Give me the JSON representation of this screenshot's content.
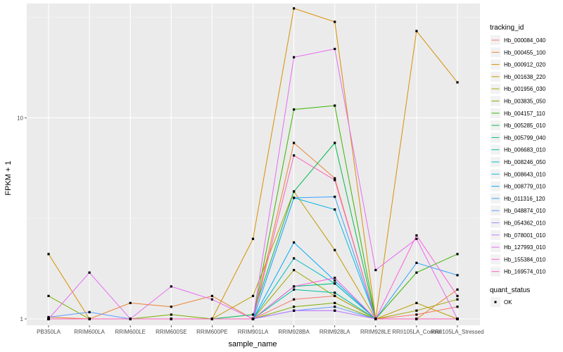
{
  "chart_data": {
    "type": "line",
    "title": "",
    "xlabel": "sample_name",
    "ylabel": "FPKM + 1",
    "y_scale": "log10",
    "ylim": [
      0.93,
      37
    ],
    "y_ticks": [
      1,
      10
    ],
    "y_tick_labels": [
      "1",
      "10"
    ],
    "categories": [
      "PB350LA",
      "RRIM600LA",
      "RRIM600LE",
      "RRIM600SE",
      "RRIM600PE",
      "RRIM901LA",
      "RRIM928BA",
      "RRIM928LA",
      "RRIM928LE",
      "RRII105LA_Control",
      "RRII105LA_Stressed"
    ],
    "category_labels": [
      "PB350LA",
      "RRIM600LA",
      "RRIM600LE",
      "RRIM600SE",
      "RRIM600PE",
      "RRIM901LA",
      "RRIM928BA",
      "RRIM928LA",
      "RRIM928LE",
      "RRII105LA_Control",
      "RRII105LA_Stressed"
    ],
    "legend_title": "tracking_id",
    "legend2_title": "quant_status",
    "legend2_label": "OK",
    "series": [
      {
        "name": "Hb_000084_040",
        "color": "#F8766D",
        "values": [
          1.0,
          1.0,
          1.0,
          1.0,
          1.0,
          1.0,
          1.25,
          1.3,
          1.0,
          1.05,
          1.15
        ]
      },
      {
        "name": "Hb_000455_100",
        "color": "#EA8331",
        "values": [
          1.02,
          1.0,
          1.2,
          1.15,
          1.3,
          1.0,
          7.5,
          5.0,
          1.0,
          1.0,
          1.4
        ]
      },
      {
        "name": "Hb_000912_020",
        "color": "#D89000",
        "values": [
          2.1,
          1.0,
          1.0,
          1.0,
          1.0,
          2.5,
          35.0,
          30.0,
          1.0,
          27.0,
          15.0
        ]
      },
      {
        "name": "Hb_001638_220",
        "color": "#C09B00",
        "values": [
          1.0,
          1.0,
          1.0,
          1.0,
          1.0,
          1.3,
          4.3,
          2.2,
          1.0,
          1.2,
          1.0
        ]
      },
      {
        "name": "Hb_001956_030",
        "color": "#A3A500",
        "values": [
          1.0,
          1.0,
          1.0,
          1.0,
          1.0,
          1.0,
          1.75,
          1.3,
          1.0,
          1.1,
          1.25
        ]
      },
      {
        "name": "Hb_003835_050",
        "color": "#7CAE00",
        "values": [
          1.3,
          1.0,
          1.0,
          1.05,
          1.0,
          1.0,
          1.15,
          1.2,
          1.0,
          1.0,
          1.0
        ]
      },
      {
        "name": "Hb_004157_110",
        "color": "#39B600",
        "values": [
          1.0,
          1.0,
          1.0,
          1.0,
          1.0,
          1.0,
          11.0,
          11.5,
          1.0,
          1.7,
          2.1
        ]
      },
      {
        "name": "Hb_005285_010",
        "color": "#00BB4E",
        "values": [
          1.0,
          1.0,
          1.0,
          1.0,
          1.0,
          1.05,
          4.3,
          7.5,
          1.0,
          1.0,
          1.0
        ]
      },
      {
        "name": "Hb_005799_040",
        "color": "#00BF7D",
        "values": [
          1.0,
          1.0,
          1.0,
          1.0,
          1.0,
          1.0,
          1.45,
          1.5,
          1.0,
          1.0,
          1.0
        ]
      },
      {
        "name": "Hb_006683_010",
        "color": "#00C1A3",
        "values": [
          1.0,
          1.0,
          1.0,
          1.0,
          1.0,
          1.0,
          1.4,
          1.35,
          1.0,
          1.0,
          1.0
        ]
      },
      {
        "name": "Hb_008246_050",
        "color": "#00BFC4",
        "values": [
          1.0,
          1.0,
          1.0,
          1.0,
          1.0,
          1.0,
          2.0,
          1.5,
          1.0,
          1.0,
          1.0
        ]
      },
      {
        "name": "Hb_008643_010",
        "color": "#00B8E5",
        "values": [
          1.0,
          1.0,
          1.0,
          1.0,
          1.0,
          1.0,
          4.0,
          3.5,
          1.0,
          1.0,
          1.0
        ]
      },
      {
        "name": "Hb_008779_010",
        "color": "#00A9FF",
        "values": [
          1.0,
          1.0,
          1.0,
          1.0,
          1.0,
          1.0,
          2.4,
          1.55,
          1.0,
          1.0,
          1.0
        ]
      },
      {
        "name": "Hb_011316_120",
        "color": "#35A2FF",
        "values": [
          1.0,
          1.0,
          1.0,
          1.0,
          1.0,
          1.0,
          4.0,
          4.05,
          1.0,
          1.9,
          1.65
        ]
      },
      {
        "name": "Hb_048874_010",
        "color": "#619CFF",
        "values": [
          1.02,
          1.08,
          1.0,
          1.0,
          1.0,
          1.0,
          1.1,
          1.15,
          1.0,
          1.0,
          1.0
        ]
      },
      {
        "name": "Hb_054362_010",
        "color": "#9590FF",
        "values": [
          1.0,
          1.0,
          1.0,
          1.0,
          1.0,
          1.0,
          1.1,
          1.1,
          1.0,
          1.0,
          1.0
        ]
      },
      {
        "name": "Hb_078001_010",
        "color": "#C77CFF",
        "values": [
          1.0,
          1.0,
          1.0,
          1.0,
          1.0,
          1.0,
          1.1,
          1.1,
          1.0,
          1.0,
          1.0
        ]
      },
      {
        "name": "Hb_127993_010",
        "color": "#E76BF3",
        "values": [
          1.0,
          1.7,
          1.0,
          1.45,
          1.25,
          1.0,
          20.0,
          22.0,
          1.75,
          2.5,
          1.0
        ]
      },
      {
        "name": "Hb_155384_010",
        "color": "#FA62DB",
        "values": [
          1.0,
          1.0,
          1.0,
          1.0,
          1.0,
          1.0,
          1.45,
          1.6,
          1.0,
          2.6,
          1.3
        ]
      },
      {
        "name": "Hb_169574_010",
        "color": "#FF62BC",
        "values": [
          1.0,
          1.0,
          1.0,
          1.0,
          1.0,
          1.0,
          6.5,
          4.9,
          1.0,
          1.0,
          1.0
        ]
      }
    ]
  }
}
